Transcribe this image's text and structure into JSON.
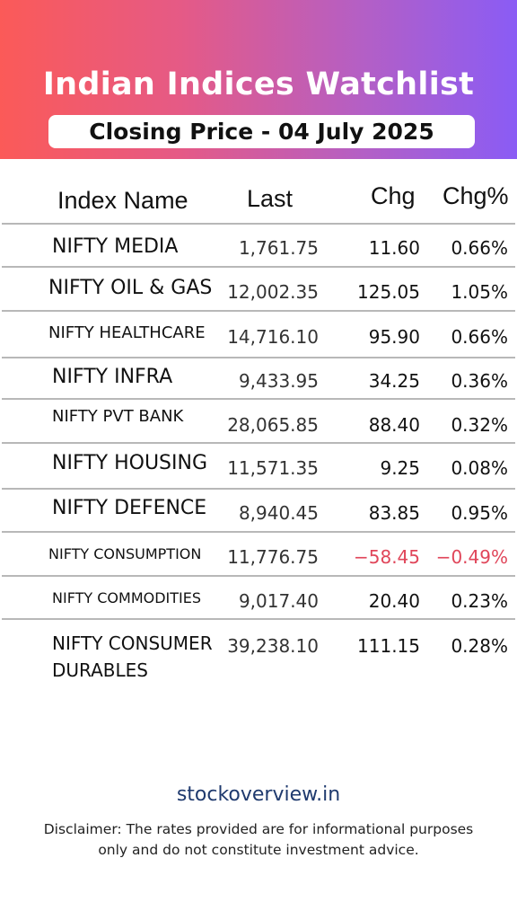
{
  "header": {
    "title": "Indian Indices Watchlist",
    "subtitle": "Closing Price - 04 July 2025"
  },
  "table": {
    "columns": [
      "Index Name",
      "Last",
      "Chg",
      "Chg%"
    ],
    "rows": [
      {
        "name": "NIFTY MEDIA",
        "last": "1,761.75",
        "chg": "11.60",
        "chg_pct": "0.66%"
      },
      {
        "name": "NIFTY OIL & GAS",
        "last": "12,002.35",
        "chg": "125.05",
        "chg_pct": "1.05%"
      },
      {
        "name": "NIFTY HEALTHCARE",
        "last": "14,716.10",
        "chg": "95.90",
        "chg_pct": "0.66%"
      },
      {
        "name": "NIFTY INFRA",
        "last": "9,433.95",
        "chg": "34.25",
        "chg_pct": "0.36%"
      },
      {
        "name": "NIFTY PVT BANK",
        "last": "28,065.85",
        "chg": "88.40",
        "chg_pct": "0.32%"
      },
      {
        "name": "NIFTY HOUSING",
        "last": "11,571.35",
        "chg": "9.25",
        "chg_pct": "0.08%"
      },
      {
        "name": "NIFTY DEFENCE",
        "last": "8,940.45",
        "chg": "83.85",
        "chg_pct": "0.95%"
      },
      {
        "name": "NIFTY CONSUMPTION",
        "last": "11,776.75",
        "chg": "-58.45",
        "chg_pct": "-0.49%"
      },
      {
        "name": "NIFTY COMMODITIES",
        "last": "9,017.40",
        "chg": "20.40",
        "chg_pct": "0.23%"
      },
      {
        "name": "NIFTY CONSUMER",
        "name_line2": "DURABLES",
        "last": "39,238.10",
        "chg": "111.15",
        "chg_pct": "0.28%"
      }
    ]
  },
  "footer": {
    "site": "stockoverview.in",
    "disclaimer": "Disclaimer: The rates provided are for informational purposes only and do not constitute investment advice."
  },
  "colors": {
    "positive": "#3bb08a",
    "negative": "#e0465a",
    "gradient_start": "#fb5a58",
    "gradient_end": "#8a5cf5"
  }
}
